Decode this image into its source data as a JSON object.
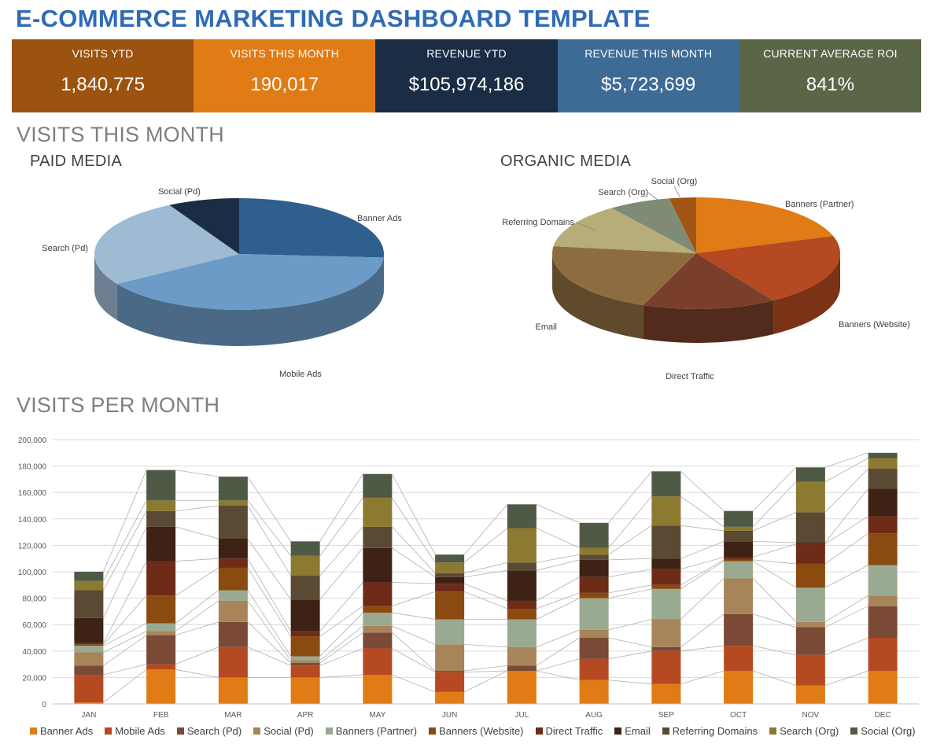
{
  "title": "E-COMMERCE MARKETING DASHBOARD TEMPLATE",
  "kpis": [
    {
      "label": "VISITS YTD",
      "value": "1,840,775",
      "color": "#9c530f"
    },
    {
      "label": "VISITS THIS MONTH",
      "value": "190,017",
      "color": "#e07b16"
    },
    {
      "label": "REVENUE YTD",
      "value": "$105,974,186",
      "color": "#1b2d44"
    },
    {
      "label": "REVENUE THIS MONTH",
      "value": "$5,723,699",
      "color": "#3d6b96"
    },
    {
      "label": "CURRENT AVERAGE ROI",
      "value": "841%",
      "color": "#5b6646"
    }
  ],
  "sections": {
    "visits_this_month": "VISITS THIS MONTH",
    "paid_media": "PAID MEDIA",
    "organic_media": "ORGANIC MEDIA",
    "visits_per_month": "VISITS PER MONTH"
  },
  "chart_data": [
    {
      "type": "pie",
      "title": "PAID MEDIA",
      "labels": [
        "Banner Ads",
        "Mobile Ads",
        "Search (Pd)",
        "Social (Pd)"
      ],
      "values": [
        26,
        40,
        26,
        8
      ],
      "colors": [
        "#2f5f8f",
        "#6b9bc6",
        "#9fbad3",
        "#1b2d44"
      ]
    },
    {
      "type": "pie",
      "title": "ORGANIC MEDIA",
      "labels": [
        "Banners (Partner)",
        "Banners (Website)",
        "Direct Traffic",
        "Email",
        "Referring Domains",
        "Search (Org)",
        "Social (Org)"
      ],
      "values": [
        20,
        21,
        15,
        21,
        13,
        7,
        3
      ],
      "colors": [
        "#e07b16",
        "#b54a22",
        "#7a3f2b",
        "#8d6d40",
        "#b6ad78",
        "#7f8b75",
        "#a25512"
      ]
    },
    {
      "type": "bar",
      "stacked": true,
      "title": "VISITS PER MONTH",
      "categories": [
        "JAN",
        "FEB",
        "MAR",
        "APR",
        "MAY",
        "JUN",
        "JUL",
        "AUG",
        "SEP",
        "OCT",
        "NOV",
        "DEC"
      ],
      "ylim": [
        0,
        200000
      ],
      "yticks": [
        "0",
        "20,000",
        "40,000",
        "60,000",
        "80,000",
        "100,000",
        "120,000",
        "140,000",
        "160,000",
        "180,000",
        "200,000"
      ],
      "series": [
        {
          "name": "Banner Ads",
          "color": "#e07b16",
          "values": [
            1000,
            26000,
            20000,
            20000,
            22000,
            9000,
            25000,
            18000,
            15000,
            25000,
            14000,
            25000
          ]
        },
        {
          "name": "Mobile Ads",
          "color": "#b54a22",
          "values": [
            21000,
            4000,
            23000,
            9000,
            20000,
            15000,
            0,
            16000,
            25000,
            19000,
            23000,
            25000
          ]
        },
        {
          "name": "Search (Pd)",
          "color": "#7a4a36",
          "values": [
            7000,
            22000,
            19000,
            2000,
            12000,
            1000,
            4000,
            16000,
            3000,
            24000,
            21000,
            24000
          ]
        },
        {
          "name": "Social (Pd)",
          "color": "#a7845a",
          "values": [
            10000,
            3000,
            16000,
            2000,
            5000,
            20000,
            14000,
            6000,
            21000,
            27000,
            4000,
            8000
          ]
        },
        {
          "name": "Banners (Partner)",
          "color": "#9aaa90",
          "values": [
            5000,
            6000,
            8000,
            3000,
            10000,
            19000,
            21000,
            24000,
            23000,
            13000,
            26000,
            23000
          ]
        },
        {
          "name": "Banners (Website)",
          "color": "#8a4a10",
          "values": [
            1000,
            21000,
            17000,
            15000,
            5000,
            21000,
            8000,
            4000,
            3000,
            1000,
            18000,
            24000
          ]
        },
        {
          "name": "Direct Traffic",
          "color": "#6e2b18",
          "values": [
            1000,
            26000,
            7000,
            4000,
            18000,
            6000,
            6000,
            12000,
            12000,
            2000,
            15000,
            13000
          ]
        },
        {
          "name": "Email",
          "color": "#3e2215",
          "values": [
            19000,
            26000,
            15000,
            24000,
            26000,
            5000,
            23000,
            13000,
            8000,
            12000,
            1000,
            21000
          ]
        },
        {
          "name": "Referring Domains",
          "color": "#5a4a33",
          "values": [
            21000,
            12000,
            25000,
            18000,
            16000,
            3000,
            6000,
            4000,
            25000,
            8000,
            23000,
            15000
          ]
        },
        {
          "name": "Search (Org)",
          "color": "#8c7a30",
          "values": [
            7000,
            8000,
            4000,
            15000,
            22000,
            8000,
            26000,
            5000,
            22000,
            3000,
            23000,
            8000
          ]
        },
        {
          "name": "Social (Org)",
          "color": "#4e5a46",
          "values": [
            7000,
            23000,
            18000,
            11000,
            18000,
            6000,
            18000,
            19000,
            19000,
            12000,
            11000,
            4000
          ]
        }
      ]
    }
  ]
}
